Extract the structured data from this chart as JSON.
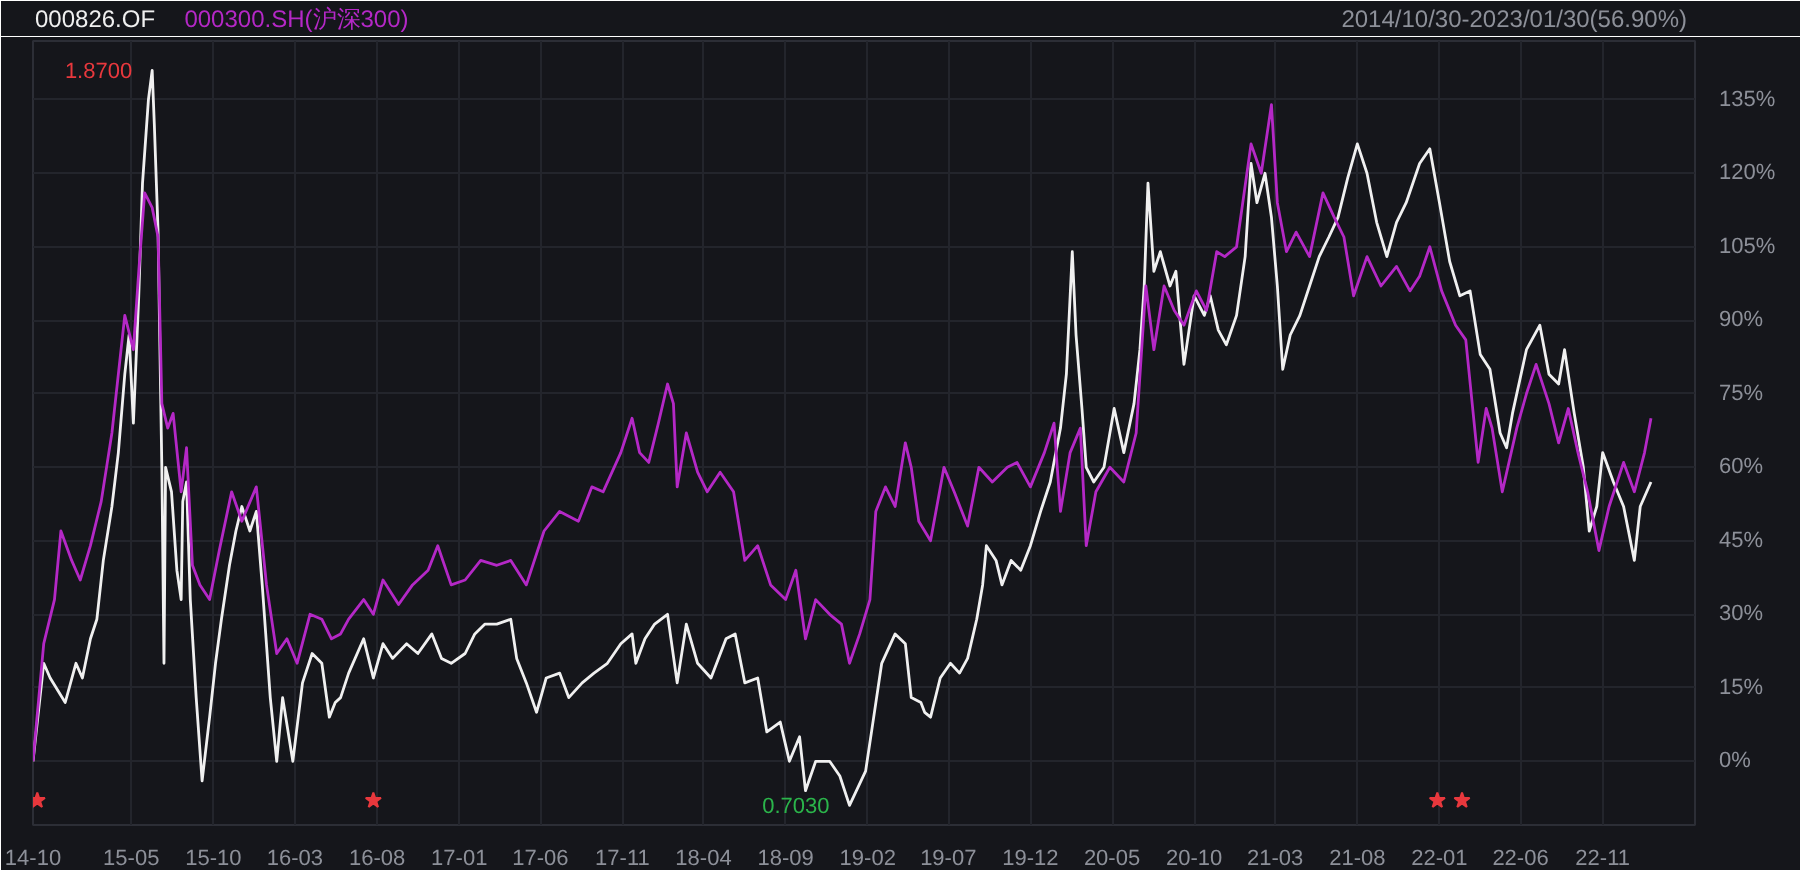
{
  "chart_data": {
    "type": "line",
    "annotations": [
      {
        "text": "1.8700",
        "x": "2015-06-09",
        "y": 141
      },
      {
        "text": "0.7030",
        "x": "2018-12-29",
        "y": -9
      },
      "2014/10/30-2023/01/30(56.90%)"
    ],
    "xlim": [
      "2014-10-30",
      "2023-04-22"
    ],
    "xticks": [
      {
        "value": "2014-10-30",
        "label": "14-10"
      },
      {
        "value": "2015-05",
        "label": "15-05"
      },
      {
        "value": "2015-10",
        "label": "15-10"
      },
      {
        "value": "2016-03",
        "label": "16-03"
      },
      {
        "value": "2016-08",
        "label": "16-08"
      },
      {
        "value": "2017-01",
        "label": "17-01"
      },
      {
        "value": "2017-06",
        "label": "17-06"
      },
      {
        "value": "2017-11",
        "label": "17-11"
      },
      {
        "value": "2018-04",
        "label": "18-04"
      },
      {
        "value": "2018-09",
        "label": "18-09"
      },
      {
        "value": "2019-02",
        "label": "19-02"
      },
      {
        "value": "2019-07",
        "label": "19-07"
      },
      {
        "value": "2019-12",
        "label": "19-12"
      },
      {
        "value": "2020-05",
        "label": "20-05"
      },
      {
        "value": "2020-10",
        "label": "20-10"
      },
      {
        "value": "2021-03",
        "label": "21-03"
      },
      {
        "value": "2021-08",
        "label": "21-08"
      },
      {
        "value": "2022-01",
        "label": "22-01"
      },
      {
        "value": "2022-06",
        "label": "22-06"
      },
      {
        "value": "2022-11",
        "label": "22-11"
      }
    ],
    "ylim": [
      -13,
      147
    ],
    "yticks": [
      {
        "value": 0,
        "label": "0%"
      },
      {
        "value": 15,
        "label": "15%"
      },
      {
        "value": 30,
        "label": "30%"
      },
      {
        "value": 45,
        "label": "45%"
      },
      {
        "value": 60,
        "label": "60%"
      },
      {
        "value": 75,
        "label": "75%"
      },
      {
        "value": 90,
        "label": "90%"
      },
      {
        "value": 105,
        "label": "105%"
      },
      {
        "value": 120,
        "label": "120%"
      },
      {
        "value": 135,
        "label": "135%"
      }
    ],
    "grid": true,
    "legend": "top left",
    "series": [
      {
        "name": "000826.OF",
        "color": "#f0f0f0",
        "x": [
          "2014-10-30",
          "2014-11-19",
          "2014-12-01",
          "2014-12-29",
          "2015-01-18",
          "2015-01-30",
          "2015-02-14",
          "2015-02-26",
          "2015-03-10",
          "2015-03-26",
          "2015-04-07",
          "2015-04-19",
          "2015-04-27",
          "2015-05-05",
          "2015-05-15",
          "2015-05-22",
          "2015-06-02",
          "2015-06-09",
          "2015-06-13",
          "2015-06-20",
          "2015-06-23",
          "2015-06-27",
          "2015-07-01",
          "2015-07-04",
          "2015-07-15",
          "2015-07-25",
          "2015-08-02",
          "2015-08-05",
          "2015-08-12",
          "2015-08-19",
          "2015-08-30",
          "2015-09-10",
          "2015-09-24",
          "2015-10-05",
          "2015-10-16",
          "2015-10-31",
          "2015-11-12",
          "2015-11-23",
          "2015-12-08",
          "2015-12-20",
          "2015-12-31",
          "2016-01-15",
          "2016-01-27",
          "2016-02-07",
          "2016-02-26",
          "2016-03-15",
          "2016-04-02",
          "2016-04-20",
          "2016-05-04",
          "2016-05-15",
          "2016-05-25",
          "2016-06-09",
          "2016-07-07",
          "2016-07-25",
          "2016-08-12",
          "2016-08-30",
          "2016-09-25",
          "2016-10-16",
          "2016-11-11",
          "2016-11-29",
          "2016-12-17",
          "2017-01-12",
          "2017-01-30",
          "2017-02-18",
          "2017-03-12",
          "2017-04-07",
          "2017-04-18",
          "2017-05-06",
          "2017-05-25",
          "2017-06-12",
          "2017-07-07",
          "2017-07-24",
          "2017-08-18",
          "2017-09-09",
          "2017-10-04",
          "2017-10-29",
          "2017-11-19",
          "2017-11-26",
          "2017-12-13",
          "2017-12-31",
          "2018-01-24",
          "2018-02-11",
          "2018-02-28",
          "2018-03-21",
          "2018-04-15",
          "2018-05-13",
          "2018-05-30",
          "2018-06-17",
          "2018-07-11",
          "2018-07-28",
          "2018-08-22",
          "2018-09-08",
          "2018-09-27",
          "2018-10-08",
          "2018-10-27",
          "2018-11-22",
          "2018-12-11",
          "2018-12-29",
          "2019-01-28",
          "2019-02-08",
          "2019-02-27",
          "2019-03-24",
          "2019-04-12",
          "2019-04-23",
          "2019-05-11",
          "2019-05-18",
          "2019-05-29",
          "2019-06-16",
          "2019-07-05",
          "2019-07-22",
          "2019-08-06",
          "2019-08-23",
          "2019-09-03",
          "2019-09-10",
          "2019-09-28",
          "2019-10-09",
          "2019-10-26",
          "2019-11-13",
          "2019-12-01",
          "2019-12-20",
          "2020-01-07",
          "2020-01-26",
          "2020-02-06",
          "2020-02-17",
          "2020-02-24",
          "2020-03-06",
          "2020-03-14",
          "2020-03-28",
          "2020-04-16",
          "2020-05-05",
          "2020-05-23",
          "2020-06-11",
          "2020-06-22",
          "2020-06-30",
          "2020-07-07",
          "2020-07-18",
          "2020-07-30",
          "2020-08-17",
          "2020-08-28",
          "2020-09-12",
          "2020-10-01",
          "2020-10-20",
          "2020-10-31",
          "2020-11-15",
          "2020-11-30",
          "2020-12-19",
          "2021-01-04",
          "2021-01-15",
          "2021-01-26",
          "2021-02-10",
          "2021-02-22",
          "2021-03-05",
          "2021-03-15",
          "2021-03-29",
          "2021-04-16",
          "2021-05-04",
          "2021-05-22",
          "2021-06-09",
          "2021-06-26",
          "2021-07-14",
          "2021-08-01",
          "2021-08-19",
          "2021-09-06",
          "2021-09-25",
          "2021-10-13",
          "2021-10-31",
          "2021-11-25",
          "2021-12-14",
          "2022-01-01",
          "2022-01-20",
          "2022-02-08",
          "2022-02-27",
          "2022-03-18",
          "2022-04-05",
          "2022-04-24",
          "2022-05-06",
          "2022-05-17",
          "2022-06-12",
          "2022-07-07",
          "2022-07-24",
          "2022-08-11",
          "2022-08-22",
          "2022-09-09",
          "2022-09-26",
          "2022-10-07",
          "2022-10-21",
          "2022-11-01",
          "2022-11-21",
          "2022-12-10",
          "2022-12-30",
          "2023-01-10",
          "2023-01-30"
        ],
        "values": [
          0,
          20,
          17,
          12,
          20,
          17,
          25,
          29,
          41,
          52,
          63,
          79,
          87,
          69,
          95,
          118,
          135,
          141,
          130,
          108,
          87,
          60,
          20,
          60,
          55,
          39,
          33,
          53,
          57,
          33,
          13,
          -4,
          9,
          20,
          29,
          40,
          47,
          52,
          47,
          51,
          36,
          13,
          0,
          13,
          0,
          16,
          22,
          20,
          9,
          12,
          13,
          18,
          25,
          17,
          24,
          21,
          24,
          22,
          26,
          21,
          20,
          22,
          26,
          28,
          28,
          29,
          21,
          16,
          10,
          17,
          18,
          13,
          16,
          18,
          20,
          24,
          26,
          20,
          25,
          28,
          30,
          16,
          28,
          20,
          17,
          25,
          26,
          16,
          17,
          6,
          8,
          0,
          5,
          -6,
          0,
          0,
          -3,
          -9,
          -2,
          6,
          20,
          26,
          24,
          13,
          12,
          10,
          9,
          17,
          20,
          18,
          21,
          29,
          36,
          44,
          41,
          36,
          41,
          39,
          44,
          51,
          57,
          68,
          79,
          104,
          87,
          72,
          60,
          57,
          60,
          72,
          63,
          73,
          84,
          97,
          118,
          100,
          104,
          97,
          100,
          81,
          95,
          91,
          95,
          88,
          85,
          91,
          103,
          122,
          114,
          120,
          111,
          97,
          80,
          87,
          91,
          97,
          103,
          107,
          111,
          119,
          126,
          120,
          110,
          103,
          110,
          114,
          122,
          125,
          114,
          102,
          95,
          96,
          83,
          80,
          67,
          64,
          71,
          84,
          89,
          79,
          77,
          84,
          71,
          60,
          47,
          52,
          63,
          57,
          52,
          41,
          52,
          57
        ]
      },
      {
        "name": "000300.SH(沪深300)",
        "color": "#b428c6",
        "x": [
          "2014-10-30",
          "2014-11-19",
          "2014-12-09",
          "2014-12-21",
          "2015-01-10",
          "2015-01-26",
          "2015-02-14",
          "2015-03-06",
          "2015-03-26",
          "2015-04-19",
          "2015-05-05",
          "2015-05-15",
          "2015-05-26",
          "2015-06-09",
          "2015-06-20",
          "2015-06-27",
          "2015-07-08",
          "2015-07-18",
          "2015-08-02",
          "2015-08-12",
          "2015-08-23",
          "2015-09-06",
          "2015-09-24",
          "2015-10-12",
          "2015-11-04",
          "2015-11-23",
          "2015-12-20",
          "2016-01-08",
          "2016-01-27",
          "2016-02-15",
          "2016-03-05",
          "2016-03-29",
          "2016-04-20",
          "2016-05-08",
          "2016-05-25",
          "2016-06-09",
          "2016-07-07",
          "2016-07-25",
          "2016-08-12",
          "2016-09-10",
          "2016-10-06",
          "2016-11-04",
          "2016-11-22",
          "2016-12-17",
          "2017-01-12",
          "2017-02-10",
          "2017-03-12",
          "2017-04-07",
          "2017-05-06",
          "2017-06-08",
          "2017-07-07",
          "2017-08-11",
          "2017-09-05",
          "2017-09-26",
          "2017-10-29",
          "2017-11-19",
          "2017-12-03",
          "2017-12-20",
          "2018-01-07",
          "2018-01-24",
          "2018-02-04",
          "2018-02-11",
          "2018-02-28",
          "2018-03-21",
          "2018-04-08",
          "2018-05-02",
          "2018-05-27",
          "2018-06-17",
          "2018-07-11",
          "2018-08-04",
          "2018-09-01",
          "2018-09-20",
          "2018-10-08",
          "2018-10-27",
          "2018-11-22",
          "2018-12-14",
          "2018-12-29",
          "2019-01-17",
          "2019-02-05",
          "2019-02-16",
          "2019-03-06",
          "2019-03-24",
          "2019-04-12",
          "2019-04-23",
          "2019-05-07",
          "2019-05-18",
          "2019-05-29",
          "2019-06-23",
          "2019-07-12",
          "2019-08-06",
          "2019-08-27",
          "2019-09-21",
          "2019-10-19",
          "2019-11-06",
          "2019-12-01",
          "2019-12-27",
          "2020-01-14",
          "2020-01-26",
          "2020-02-13",
          "2020-03-03",
          "2020-03-14",
          "2020-04-01",
          "2020-04-27",
          "2020-05-23",
          "2020-06-15",
          "2020-07-03",
          "2020-07-18",
          "2020-08-06",
          "2020-08-25",
          "2020-09-12",
          "2020-10-05",
          "2020-10-24",
          "2020-11-12",
          "2020-11-27",
          "2020-12-19",
          "2021-01-15",
          "2021-02-03",
          "2021-02-22",
          "2021-03-05",
          "2021-03-22",
          "2021-04-09",
          "2021-05-04",
          "2021-05-29",
          "2021-06-19",
          "2021-07-07",
          "2021-07-25",
          "2021-08-19",
          "2021-09-14",
          "2021-10-13",
          "2021-11-07",
          "2021-11-25",
          "2021-12-14",
          "2022-01-05",
          "2022-01-31",
          "2022-02-19",
          "2022-03-14",
          "2022-03-29",
          "2022-04-09",
          "2022-04-28",
          "2022-05-25",
          "2022-06-12",
          "2022-06-30",
          "2022-07-24",
          "2022-08-11",
          "2022-08-29",
          "2022-09-16",
          "2022-10-04",
          "2022-10-25",
          "2022-11-13",
          "2022-12-10",
          "2022-12-30",
          "2023-01-18",
          "2023-01-30"
        ],
        "values": [
          0,
          24,
          33,
          47,
          41,
          37,
          44,
          53,
          67,
          91,
          84,
          100,
          116,
          113,
          107,
          73,
          68,
          71,
          55,
          64,
          40,
          36,
          33,
          43,
          55,
          49,
          56,
          36,
          22,
          25,
          20,
          30,
          29,
          25,
          26,
          29,
          33,
          30,
          37,
          32,
          36,
          39,
          44,
          36,
          37,
          41,
          40,
          41,
          36,
          47,
          51,
          49,
          56,
          55,
          63,
          70,
          63,
          61,
          69,
          77,
          73,
          56,
          67,
          59,
          55,
          59,
          55,
          41,
          44,
          36,
          33,
          39,
          25,
          33,
          30,
          28,
          20,
          26,
          33,
          51,
          56,
          52,
          65,
          60,
          49,
          47,
          45,
          60,
          55,
          48,
          60,
          57,
          60,
          61,
          56,
          63,
          69,
          51,
          63,
          68,
          44,
          55,
          60,
          57,
          67,
          97,
          84,
          97,
          92,
          89,
          96,
          92,
          104,
          103,
          105,
          126,
          120,
          134,
          114,
          104,
          108,
          103,
          116,
          111,
          107,
          95,
          103,
          97,
          101,
          96,
          99,
          105,
          96,
          89,
          86,
          61,
          72,
          68,
          55,
          68,
          75,
          81,
          73,
          65,
          72,
          63,
          55,
          43,
          52,
          61,
          55,
          63,
          70
        ]
      },
      {
        "type": "scatter",
        "marker": "star",
        "color": "#e8383d",
        "x": [
          "2014-11-07",
          "2016-07-25",
          "2021-12-28",
          "2022-02-12"
        ],
        "values": [
          -8,
          -8,
          -8,
          -8
        ]
      }
    ]
  }
}
